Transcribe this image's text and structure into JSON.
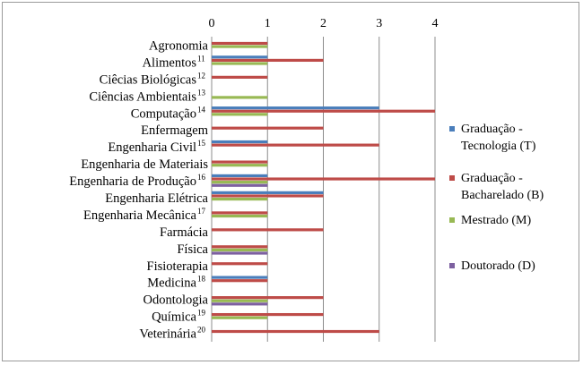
{
  "chart_data": {
    "type": "bar",
    "orientation": "horizontal",
    "title": "",
    "xlabel": "",
    "ylabel": "",
    "xlim": [
      0,
      4
    ],
    "xticks": [
      "0",
      "1",
      "2",
      "3",
      "4"
    ],
    "grid": true,
    "legend_position": "right",
    "categories": [
      "Agronomia",
      "Alimentos",
      "Ciêcias Biológicas",
      "Ciências Ambientais",
      "Computação",
      "Enfermagem",
      "Engenharia Civil",
      "Engenharia de Materiais",
      "Engenharia de Produção",
      "Engenharia Elétrica",
      "Engenharia Mecânica",
      "Farmácia",
      "Física",
      "Fisioterapia",
      "Medicina",
      "Odontologia",
      "Química",
      "Veterinária"
    ],
    "category_superscripts": [
      "",
      "11",
      "12",
      "13",
      "14",
      "",
      "15",
      "",
      "16",
      "",
      "17",
      "",
      "",
      "",
      "18",
      "",
      "19",
      "20"
    ],
    "series": [
      {
        "name": "Graduação - Tecnologia (T)",
        "legend_lines": [
          "Graduação -",
          "Tecnologia (T)"
        ],
        "color": "#4a7ebb",
        "values": [
          0,
          1,
          0,
          0,
          3,
          0,
          1,
          0,
          1,
          2,
          0,
          0,
          0,
          0,
          1,
          0,
          0,
          0
        ]
      },
      {
        "name": "Graduação - Bacharelado (B)",
        "legend_lines": [
          "Graduação -",
          "Bacharelado (B)"
        ],
        "color": "#be4b48",
        "values": [
          1,
          2,
          1,
          0,
          4,
          2,
          3,
          1,
          4,
          2,
          1,
          2,
          1,
          1,
          1,
          2,
          2,
          3
        ]
      },
      {
        "name": "Mestrado (M)",
        "legend_lines": [
          "Mestrado (M)"
        ],
        "color": "#98b954",
        "values": [
          1,
          1,
          0,
          1,
          1,
          0,
          0,
          1,
          1,
          1,
          1,
          0,
          1,
          0,
          0,
          1,
          1,
          0
        ]
      },
      {
        "name": "Doutorado (D)",
        "legend_lines": [
          "Doutorado (D)"
        ],
        "color": "#7d60a0",
        "values": [
          0,
          0,
          0,
          0,
          0,
          0,
          0,
          0,
          1,
          0,
          0,
          0,
          1,
          0,
          0,
          1,
          0,
          0
        ]
      }
    ]
  }
}
